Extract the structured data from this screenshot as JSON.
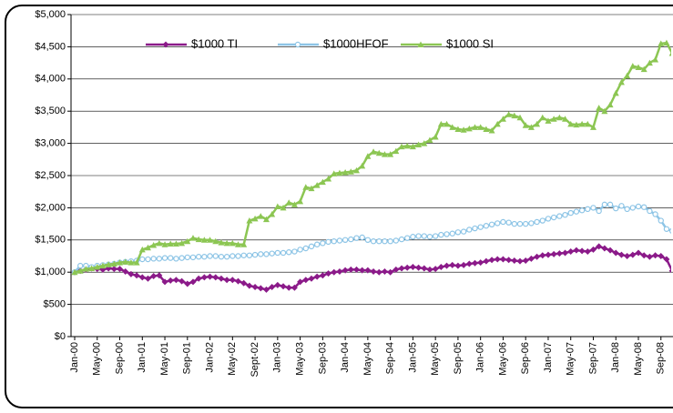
{
  "chart_data": {
    "type": "line",
    "categories": [
      "Jan-00",
      null,
      null,
      null,
      "May-00",
      null,
      null,
      null,
      "Sep-00",
      null,
      null,
      null,
      "Jan-01",
      null,
      null,
      null,
      "May-01",
      null,
      null,
      null,
      "Sep-01",
      null,
      null,
      null,
      "Jan-02",
      null,
      null,
      null,
      "May-02",
      null,
      null,
      null,
      "Sept-02",
      null,
      null,
      null,
      "Jan-03",
      null,
      null,
      null,
      "May-03",
      null,
      null,
      null,
      "Sep-03",
      null,
      null,
      null,
      "Jan-04",
      null,
      null,
      null,
      "May-04",
      null,
      null,
      null,
      "Sep-04",
      null,
      null,
      null,
      "Jan-05",
      null,
      null,
      null,
      "May-05",
      null,
      null,
      null,
      "Sep-05",
      null,
      null,
      null,
      "Jan-06",
      null,
      null,
      null,
      "May-06",
      null,
      null,
      null,
      "Sep-06",
      null,
      null,
      null,
      "Jan-07",
      null,
      null,
      null,
      "May-07",
      null,
      null,
      null,
      "Sep-07",
      null,
      null,
      null,
      "Jan-08",
      null,
      null,
      null,
      "May-08",
      null,
      null,
      null,
      "Sep-08",
      null,
      null,
      null
    ],
    "series": [
      {
        "name": "$1000 TI",
        "color": "#8b1a89",
        "marker": "diamond",
        "values": [
          1000,
          1020,
          1040,
          1060,
          1050,
          1040,
          1060,
          1050,
          1050,
          1010,
          970,
          950,
          920,
          900,
          940,
          950,
          850,
          870,
          880,
          860,
          820,
          850,
          900,
          920,
          930,
          920,
          900,
          880,
          880,
          860,
          830,
          790,
          770,
          750,
          730,
          770,
          800,
          780,
          760,
          760,
          850,
          880,
          900,
          930,
          950,
          980,
          1000,
          1010,
          1030,
          1040,
          1040,
          1030,
          1030,
          1010,
          1000,
          1010,
          1000,
          1040,
          1060,
          1070,
          1080,
          1070,
          1060,
          1040,
          1050,
          1080,
          1100,
          1110,
          1100,
          1110,
          1130,
          1140,
          1150,
          1170,
          1190,
          1200,
          1200,
          1190,
          1180,
          1170,
          1180,
          1210,
          1240,
          1260,
          1270,
          1280,
          1290,
          1300,
          1320,
          1340,
          1330,
          1320,
          1350,
          1400,
          1370,
          1340,
          1300,
          1270,
          1250,
          1270,
          1300,
          1260,
          1240,
          1260,
          1250,
          1200,
          1020,
          970
        ]
      },
      {
        "name": "$1000HFOF",
        "color": "#8ec5e6",
        "marker": "circle",
        "values": [
          1000,
          1100,
          1100,
          1080,
          1100,
          1110,
          1120,
          1130,
          1150,
          1160,
          1170,
          1180,
          1200,
          1200,
          1210,
          1210,
          1220,
          1220,
          1210,
          1220,
          1230,
          1230,
          1240,
          1240,
          1250,
          1250,
          1240,
          1240,
          1250,
          1250,
          1260,
          1260,
          1270,
          1280,
          1280,
          1290,
          1300,
          1300,
          1310,
          1320,
          1350,
          1370,
          1400,
          1430,
          1450,
          1470,
          1480,
          1490,
          1500,
          1510,
          1530,
          1540,
          1500,
          1480,
          1480,
          1480,
          1480,
          1490,
          1510,
          1530,
          1550,
          1560,
          1560,
          1550,
          1560,
          1580,
          1590,
          1600,
          1620,
          1630,
          1660,
          1680,
          1700,
          1720,
          1740,
          1760,
          1780,
          1770,
          1750,
          1750,
          1750,
          1760,
          1780,
          1800,
          1830,
          1850,
          1870,
          1890,
          1920,
          1940,
          1960,
          1980,
          2000,
          1950,
          2050,
          2050,
          1990,
          2030,
          1980,
          2000,
          2020,
          2010,
          1950,
          1900,
          1800,
          1670,
          1640,
          1620
        ]
      },
      {
        "name": "$1000 SI",
        "color": "#8cc653",
        "marker": "triangle",
        "values": [
          1000,
          1020,
          1050,
          1060,
          1080,
          1100,
          1120,
          1130,
          1150,
          1160,
          1150,
          1150,
          1350,
          1380,
          1420,
          1450,
          1430,
          1440,
          1440,
          1450,
          1480,
          1530,
          1510,
          1500,
          1500,
          1480,
          1460,
          1450,
          1450,
          1430,
          1430,
          1800,
          1830,
          1870,
          1820,
          1900,
          2020,
          2000,
          2080,
          2050,
          2100,
          2320,
          2300,
          2350,
          2400,
          2450,
          2530,
          2540,
          2550,
          2560,
          2580,
          2650,
          2800,
          2870,
          2850,
          2830,
          2830,
          2880,
          2950,
          2960,
          2950,
          2980,
          3000,
          3050,
          3100,
          3300,
          3300,
          3250,
          3220,
          3210,
          3230,
          3250,
          3250,
          3220,
          3200,
          3300,
          3380,
          3450,
          3430,
          3400,
          3280,
          3250,
          3300,
          3400,
          3350,
          3380,
          3400,
          3380,
          3300,
          3290,
          3300,
          3300,
          3250,
          3550,
          3500,
          3600,
          3780,
          3950,
          4050,
          4200,
          4180,
          4150,
          4250,
          4300,
          4550,
          4560,
          4400,
          4420
        ]
      }
    ],
    "ylim": [
      0,
      5000
    ],
    "yticks": [
      {
        "value": 0,
        "label": "$0"
      },
      {
        "value": 500,
        "label": "$500"
      },
      {
        "value": 1000,
        "label": "$1,000"
      },
      {
        "value": 1500,
        "label": "$1,500"
      },
      {
        "value": 2000,
        "label": "$2,000"
      },
      {
        "value": 2500,
        "label": "$2,500"
      },
      {
        "value": 3000,
        "label": "$3,000"
      },
      {
        "value": 3500,
        "label": "$3,500"
      },
      {
        "value": 4000,
        "label": "$4,000"
      },
      {
        "value": 4500,
        "label": "$4,500"
      },
      {
        "value": 5000,
        "label": "$5,000"
      }
    ],
    "grid": true,
    "legend": "top"
  }
}
